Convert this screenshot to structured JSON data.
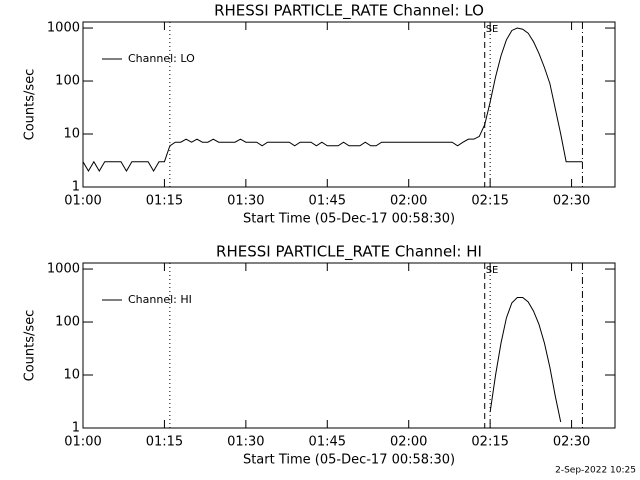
{
  "chart_data": [
    {
      "type": "line",
      "title": "RHESSI PARTICLE_RATE Channel: LO",
      "xlabel": "Start Time (05-Dec-17 00:58:30)",
      "ylabel": "Counts/sec",
      "x": [
        "01:00",
        "01:01",
        "01:02",
        "01:03",
        "01:04",
        "01:05",
        "01:06",
        "01:07",
        "01:08",
        "01:09",
        "01:10",
        "01:11",
        "01:12",
        "01:13",
        "01:14",
        "01:15",
        "01:16",
        "01:17",
        "01:18",
        "01:19",
        "01:20",
        "01:21",
        "01:22",
        "01:23",
        "01:24",
        "01:25",
        "01:26",
        "01:27",
        "01:28",
        "01:29",
        "01:30",
        "01:31",
        "01:32",
        "01:33",
        "01:34",
        "01:35",
        "01:36",
        "01:37",
        "01:38",
        "01:39",
        "01:40",
        "01:41",
        "01:42",
        "01:43",
        "01:44",
        "01:45",
        "01:46",
        "01:47",
        "01:48",
        "01:49",
        "01:50",
        "01:51",
        "01:52",
        "01:53",
        "01:54",
        "01:55",
        "01:56",
        "01:57",
        "01:58",
        "01:59",
        "02:00",
        "02:01",
        "02:02",
        "02:03",
        "02:04",
        "02:05",
        "02:06",
        "02:07",
        "02:08",
        "02:09",
        "02:10",
        "02:11",
        "02:12",
        "02:13",
        "02:14",
        "02:15",
        "02:16",
        "02:17",
        "02:18",
        "02:19",
        "02:20",
        "02:21",
        "02:22",
        "02:23",
        "02:24",
        "02:25",
        "02:26",
        "02:27",
        "02:28",
        "02:29",
        "02:30",
        "02:31",
        "02:32"
      ],
      "series": [
        {
          "name": "Channel: LO",
          "color": "#000000",
          "values": [
            3,
            2,
            3,
            2,
            3,
            3,
            3,
            3,
            2,
            3,
            3,
            3,
            3,
            2,
            3,
            3,
            6,
            7,
            7,
            8,
            7,
            8,
            7,
            7,
            8,
            7,
            7,
            7,
            7,
            8,
            7,
            7,
            7,
            6,
            7,
            7,
            7,
            7,
            7,
            6,
            7,
            7,
            7,
            6,
            7,
            6,
            6,
            6,
            7,
            6,
            6,
            6,
            7,
            6,
            6,
            7,
            7,
            7,
            7,
            7,
            7,
            7,
            7,
            7,
            7,
            7,
            7,
            7,
            7,
            6,
            7,
            8,
            8,
            9,
            15,
            40,
            120,
            300,
            600,
            900,
            1000,
            950,
            800,
            550,
            330,
            180,
            90,
            30,
            10,
            3,
            3,
            3,
            3
          ]
        }
      ],
      "xlim": [
        "01:00",
        "02:38"
      ],
      "ylim": [
        1,
        1300
      ],
      "xticks": [
        "01:00",
        "01:15",
        "01:30",
        "01:45",
        "02:00",
        "02:15",
        "02:30"
      ],
      "yticks": [
        1,
        10,
        100,
        1000
      ],
      "log_y": true,
      "legend": "upper left",
      "annotation": "SE",
      "vlines": [
        {
          "x": "01:16",
          "style": "dotted"
        },
        {
          "x": "02:14",
          "style": "dashed"
        },
        {
          "x": "02:15",
          "style": "dotted"
        },
        {
          "x": "02:32",
          "style": "dashdot"
        }
      ]
    },
    {
      "type": "line",
      "title": "RHESSI PARTICLE_RATE Channel: HI",
      "xlabel": "Start Time (05-Dec-17 00:58:30)",
      "ylabel": "Counts/sec",
      "x": [
        "02:15",
        "02:16",
        "02:17",
        "02:18",
        "02:19",
        "02:20",
        "02:21",
        "02:22",
        "02:23",
        "02:24",
        "02:25",
        "02:26",
        "02:27",
        "02:28"
      ],
      "series": [
        {
          "name": "Channel: HI",
          "color": "#000000",
          "values": [
            2,
            10,
            40,
            120,
            230,
            290,
            290,
            240,
            160,
            90,
            40,
            14,
            4,
            1.3
          ]
        }
      ],
      "xlim": [
        "01:00",
        "02:38"
      ],
      "ylim": [
        1,
        1300
      ],
      "xticks": [
        "01:00",
        "01:15",
        "01:30",
        "01:45",
        "02:00",
        "02:15",
        "02:30"
      ],
      "yticks": [
        1,
        10,
        100,
        1000
      ],
      "log_y": true,
      "legend": "upper left",
      "annotation": "SE",
      "vlines": [
        {
          "x": "01:16",
          "style": "dotted"
        },
        {
          "x": "02:14",
          "style": "dashed"
        },
        {
          "x": "02:15",
          "style": "dotted"
        },
        {
          "x": "02:32",
          "style": "dashdot"
        }
      ]
    }
  ],
  "footer": "2-Sep-2022 10:25"
}
